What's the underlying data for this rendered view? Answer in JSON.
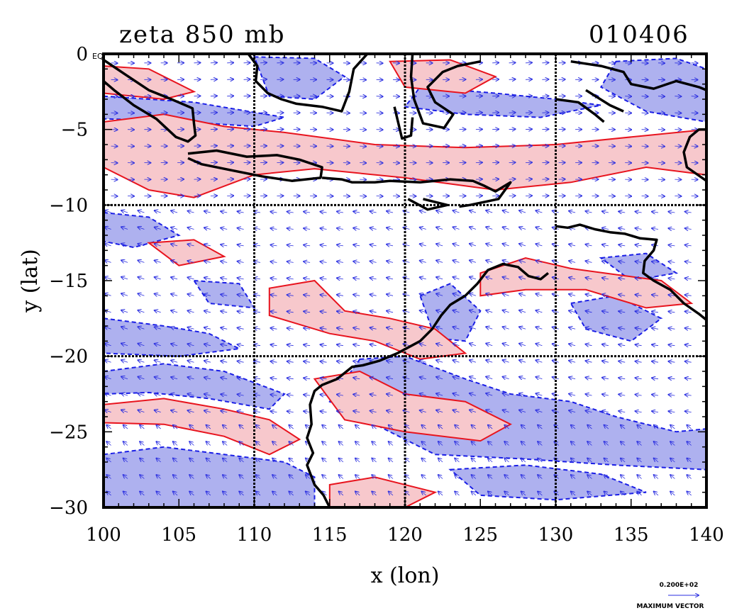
{
  "title_left": "zeta 850 mb",
  "title_right": "010406",
  "equator_label": "EQ",
  "xlabel": "x (lon)",
  "ylabel": "y (lat)",
  "x_ticks": [
    "100",
    "105",
    "110",
    "115",
    "120",
    "125",
    "130",
    "135",
    "140"
  ],
  "y_ticks": [
    "0",
    "−5",
    "−10",
    "−15",
    "−20",
    "−25",
    "−30"
  ],
  "vector_key_value": "0.200E+02",
  "vector_key_label": "MAXIMUM VECTOR",
  "colors": {
    "positive_fill": "#f7c8cc",
    "positive_contour": "#e8141e",
    "negative_fill": "#aeb1ef",
    "negative_contour": "#1a1ee6",
    "vectors": "#2a2ee0",
    "coast": "#000000"
  },
  "chart_data": {
    "type": "map",
    "xlim": [
      100,
      140
    ],
    "ylim": [
      -30,
      0
    ],
    "grid_lon": [
      110,
      120,
      130
    ],
    "grid_lat": [
      -10,
      -20
    ],
    "positive_regions": [
      [
        [
          100,
          -4.5
        ],
        [
          104,
          -4.0
        ],
        [
          108,
          -4.8
        ],
        [
          112,
          -5.2
        ],
        [
          118,
          -6.0
        ],
        [
          124,
          -6.2
        ],
        [
          130,
          -6.0
        ],
        [
          136,
          -5.4
        ],
        [
          140,
          -5.0
        ],
        [
          140,
          -8.0
        ],
        [
          136,
          -7.5
        ],
        [
          131,
          -8.5
        ],
        [
          126,
          -9.0
        ],
        [
          120,
          -8.2
        ],
        [
          114,
          -7.6
        ],
        [
          110,
          -8.0
        ],
        [
          106,
          -9.5
        ],
        [
          103,
          -9.0
        ],
        [
          100,
          -7.5
        ]
      ],
      [
        [
          100,
          -0.8
        ],
        [
          103,
          -1.0
        ],
        [
          106,
          -2.5
        ],
        [
          104,
          -3.0
        ],
        [
          100,
          -2.6
        ]
      ],
      [
        [
          119,
          -0.5
        ],
        [
          123,
          -0.4
        ],
        [
          126,
          -1.5
        ],
        [
          124,
          -2.6
        ],
        [
          120,
          -2.2
        ]
      ],
      [
        [
          125,
          -14.5
        ],
        [
          128,
          -13.5
        ],
        [
          131,
          -14.2
        ],
        [
          134,
          -14.6
        ],
        [
          137,
          -15.0
        ],
        [
          139,
          -16.5
        ],
        [
          136,
          -16.8
        ],
        [
          132,
          -15.6
        ],
        [
          128,
          -15.6
        ],
        [
          125,
          -16.0
        ]
      ],
      [
        [
          111,
          -15.5
        ],
        [
          114,
          -15.0
        ],
        [
          116,
          -17.0
        ],
        [
          119,
          -17.5
        ],
        [
          122,
          -18.2
        ],
        [
          124,
          -19.8
        ],
        [
          121,
          -20.2
        ],
        [
          118,
          -19.0
        ],
        [
          115,
          -18.5
        ],
        [
          111,
          -17.3
        ]
      ],
      [
        [
          100,
          -23.2
        ],
        [
          104,
          -22.8
        ],
        [
          108,
          -23.5
        ],
        [
          111,
          -24.2
        ],
        [
          113,
          -25.5
        ],
        [
          111,
          -26.5
        ],
        [
          108,
          -25.3
        ],
        [
          104,
          -24.5
        ],
        [
          100,
          -24.4
        ]
      ],
      [
        [
          114,
          -21.5
        ],
        [
          117,
          -21.0
        ],
        [
          120,
          -22.5
        ],
        [
          124,
          -23.0
        ],
        [
          127,
          -24.5
        ],
        [
          125,
          -25.6
        ],
        [
          120,
          -25.0
        ],
        [
          116,
          -24.2
        ]
      ],
      [
        [
          103,
          -12.5
        ],
        [
          106,
          -12.3
        ],
        [
          108,
          -13.4
        ],
        [
          105,
          -14.0
        ]
      ],
      [
        [
          115,
          -28.5
        ],
        [
          118,
          -28.0
        ],
        [
          122,
          -29.0
        ],
        [
          120,
          -30
        ],
        [
          115,
          -30
        ]
      ]
    ],
    "negative_regions": [
      [
        [
          100,
          -26.5
        ],
        [
          104,
          -26.0
        ],
        [
          108,
          -26.5
        ],
        [
          112,
          -27.0
        ],
        [
          114,
          -28.0
        ],
        [
          114,
          -30
        ],
        [
          100,
          -30
        ]
      ],
      [
        [
          100,
          -21.0
        ],
        [
          104,
          -20.5
        ],
        [
          108,
          -21.0
        ],
        [
          112,
          -22.5
        ],
        [
          111,
          -23.5
        ],
        [
          107,
          -22.8
        ],
        [
          103,
          -22.4
        ],
        [
          100,
          -22.5
        ]
      ],
      [
        [
          100,
          -17.5
        ],
        [
          104,
          -18.0
        ],
        [
          107,
          -18.5
        ],
        [
          109,
          -19.5
        ],
        [
          105,
          -20.0
        ],
        [
          100,
          -19.8
        ]
      ],
      [
        [
          110,
          -0.2
        ],
        [
          114,
          -0.3
        ],
        [
          116,
          -1.5
        ],
        [
          114,
          -3.0
        ],
        [
          111,
          -2.8
        ]
      ],
      [
        [
          100,
          -10.5
        ],
        [
          103,
          -10.8
        ],
        [
          105,
          -12.0
        ],
        [
          102,
          -12.8
        ],
        [
          100,
          -12.4
        ]
      ],
      [
        [
          100,
          -2.8
        ],
        [
          106,
          -3.2
        ],
        [
          112,
          -4.2
        ],
        [
          110,
          -4.8
        ],
        [
          104,
          -4.4
        ],
        [
          100,
          -4.3
        ]
      ],
      [
        [
          121,
          -2.2
        ],
        [
          126,
          -2.6
        ],
        [
          130,
          -3.0
        ],
        [
          133,
          -3.4
        ],
        [
          129,
          -4.2
        ],
        [
          124,
          -4.0
        ],
        [
          120,
          -3.5
        ]
      ],
      [
        [
          134,
          -0.5
        ],
        [
          138,
          -0.3
        ],
        [
          140,
          -1.0
        ],
        [
          140,
          -4.5
        ],
        [
          136,
          -3.8
        ],
        [
          133,
          -2.2
        ]
      ],
      [
        [
          117,
          -20.2
        ],
        [
          120,
          -20.0
        ],
        [
          124,
          -21.5
        ],
        [
          127,
          -22.5
        ],
        [
          131,
          -23.0
        ],
        [
          134,
          -24.0
        ],
        [
          138,
          -25.0
        ],
        [
          140,
          -24.8
        ],
        [
          140,
          -27.5
        ],
        [
          134,
          -27.2
        ],
        [
          128,
          -26.8
        ],
        [
          122,
          -26.5
        ],
        [
          118,
          -24.5
        ],
        [
          115,
          -23.0
        ]
      ],
      [
        [
          121,
          -16.0
        ],
        [
          123,
          -15.2
        ],
        [
          125,
          -17.0
        ],
        [
          124,
          -19.0
        ],
        [
          122,
          -18.8
        ]
      ],
      [
        [
          131,
          -16.5
        ],
        [
          134,
          -16.0
        ],
        [
          137,
          -17.5
        ],
        [
          135,
          -19.0
        ],
        [
          132,
          -18.2
        ]
      ],
      [
        [
          133,
          -13.5
        ],
        [
          136,
          -13.2
        ],
        [
          138,
          -14.5
        ],
        [
          135,
          -15.0
        ]
      ],
      [
        [
          123,
          -27.5
        ],
        [
          128,
          -27.2
        ],
        [
          133,
          -27.8
        ],
        [
          136,
          -29.0
        ],
        [
          130,
          -29.5
        ],
        [
          125,
          -29.2
        ]
      ],
      [
        [
          106,
          -15.0
        ],
        [
          109,
          -15.2
        ],
        [
          110,
          -16.8
        ],
        [
          107,
          -16.5
        ]
      ]
    ],
    "coastlines": [
      [
        [
          109.6,
          0
        ],
        [
          110.2,
          -0.8
        ],
        [
          110.1,
          -1.8
        ],
        [
          110.9,
          -2.6
        ],
        [
          111.8,
          -3.0
        ],
        [
          112.8,
          -3.3
        ],
        [
          114.5,
          -3.5
        ],
        [
          115.8,
          -3.8
        ],
        [
          116.3,
          -2.5
        ],
        [
          116.6,
          -1.0
        ],
        [
          117.5,
          0
        ]
      ],
      [
        [
          100,
          -0.4
        ],
        [
          101.5,
          -1.4
        ],
        [
          103.0,
          -2.4
        ],
        [
          104.5,
          -3.0
        ],
        [
          105.9,
          -3.6
        ],
        [
          106.0,
          -4.6
        ],
        [
          106.1,
          -5.4
        ],
        [
          105.6,
          -5.8
        ],
        [
          104.8,
          -5.5
        ],
        [
          103.5,
          -4.3
        ],
        [
          102.0,
          -3.4
        ],
        [
          100.7,
          -2.4
        ],
        [
          100,
          -1.8
        ]
      ],
      [
        [
          105.6,
          -6.6
        ],
        [
          107.5,
          -6.4
        ],
        [
          109.5,
          -6.8
        ],
        [
          111.5,
          -6.7
        ],
        [
          113.0,
          -7.0
        ],
        [
          114.5,
          -7.5
        ],
        [
          114.4,
          -8.2
        ],
        [
          112.5,
          -8.4
        ],
        [
          110.5,
          -8.1
        ],
        [
          108.5,
          -7.7
        ],
        [
          106.5,
          -7.3
        ],
        [
          105.6,
          -6.9
        ]
      ],
      [
        [
          114.5,
          -8.2
        ],
        [
          115.8,
          -8.3
        ],
        [
          116.5,
          -8.5
        ],
        [
          118.0,
          -8.5
        ],
        [
          119.0,
          -8.4
        ],
        [
          121.0,
          -8.5
        ],
        [
          123.0,
          -8.3
        ],
        [
          124.5,
          -8.4
        ],
        [
          125.2,
          -8.7
        ],
        [
          126.0,
          -9.1
        ],
        [
          127.0,
          -8.5
        ],
        [
          126.2,
          -9.6
        ],
        [
          124.3,
          -10.0
        ],
        [
          123.6,
          -10.1
        ]
      ],
      [
        [
          120.5,
          0
        ],
        [
          120.4,
          -1.5
        ],
        [
          120.6,
          -3.0
        ],
        [
          121.2,
          -4.6
        ],
        [
          122.6,
          -4.9
        ],
        [
          123.2,
          -4.0
        ],
        [
          122.0,
          -3.2
        ],
        [
          121.5,
          -2.2
        ],
        [
          122.5,
          -1.2
        ],
        [
          123.5,
          -0.8
        ],
        [
          125.0,
          -0.5
        ]
      ],
      [
        [
          119.3,
          -3.5
        ],
        [
          119.8,
          -5.6
        ],
        [
          120.4,
          -5.4
        ],
        [
          120.5,
          -4.2
        ]
      ],
      [
        [
          131.0,
          -0.5
        ],
        [
          133.0,
          -0.8
        ],
        [
          134.5,
          -1.2
        ],
        [
          135.0,
          -2.0
        ],
        [
          136.5,
          -2.3
        ],
        [
          138.0,
          -1.8
        ],
        [
          139.5,
          -2.2
        ],
        [
          140,
          -2.4
        ]
      ],
      [
        [
          130.0,
          -3.0
        ],
        [
          131.5,
          -3.2
        ],
        [
          132.6,
          -4.0
        ],
        [
          133.2,
          -4.5
        ]
      ],
      [
        [
          132.0,
          -2.4
        ],
        [
          133.6,
          -3.4
        ],
        [
          134.5,
          -3.8
        ]
      ],
      [
        [
          140,
          -8.4
        ],
        [
          138.7,
          -7.5
        ],
        [
          138.5,
          -6.5
        ],
        [
          138.9,
          -5.5
        ],
        [
          139.5,
          -5.0
        ],
        [
          140,
          -5.0
        ]
      ],
      [
        [
          130.0,
          -11.4
        ],
        [
          130.8,
          -11.5
        ],
        [
          131.6,
          -11.3
        ],
        [
          132.6,
          -11.6
        ],
        [
          133.6,
          -11.8
        ],
        [
          134.6,
          -11.9
        ],
        [
          135.6,
          -12.2
        ],
        [
          136.7,
          -12.3
        ],
        [
          136.5,
          -13.0
        ],
        [
          135.9,
          -13.7
        ],
        [
          135.8,
          -14.5
        ],
        [
          136.5,
          -15.0
        ],
        [
          137.6,
          -15.6
        ],
        [
          138.5,
          -16.5
        ],
        [
          139.5,
          -17.2
        ],
        [
          140,
          -17.6
        ]
      ],
      [
        [
          129.5,
          -14.5
        ],
        [
          129.0,
          -14.9
        ],
        [
          128.2,
          -14.7
        ],
        [
          127.5,
          -14.1
        ],
        [
          126.5,
          -13.9
        ],
        [
          125.5,
          -14.3
        ],
        [
          124.8,
          -15.2
        ],
        [
          124.0,
          -16.0
        ],
        [
          123.0,
          -16.6
        ],
        [
          122.4,
          -17.3
        ],
        [
          121.8,
          -18.2
        ],
        [
          121.0,
          -19.0
        ],
        [
          119.5,
          -19.8
        ],
        [
          118.3,
          -20.3
        ],
        [
          117.2,
          -20.6
        ],
        [
          116.5,
          -20.7
        ],
        [
          115.5,
          -21.5
        ],
        [
          114.5,
          -21.9
        ],
        [
          114.0,
          -22.3
        ],
        [
          113.7,
          -23.2
        ],
        [
          113.8,
          -24.5
        ],
        [
          113.5,
          -25.4
        ],
        [
          113.9,
          -26.4
        ],
        [
          113.5,
          -27.2
        ],
        [
          114.0,
          -28.5
        ],
        [
          114.6,
          -29.2
        ],
        [
          115.0,
          -30
        ]
      ],
      [
        [
          120.2,
          -9.6
        ],
        [
          121.5,
          -10.3
        ],
        [
          122.8,
          -10.0
        ],
        [
          121.2,
          -9.6
        ]
      ]
    ]
  }
}
